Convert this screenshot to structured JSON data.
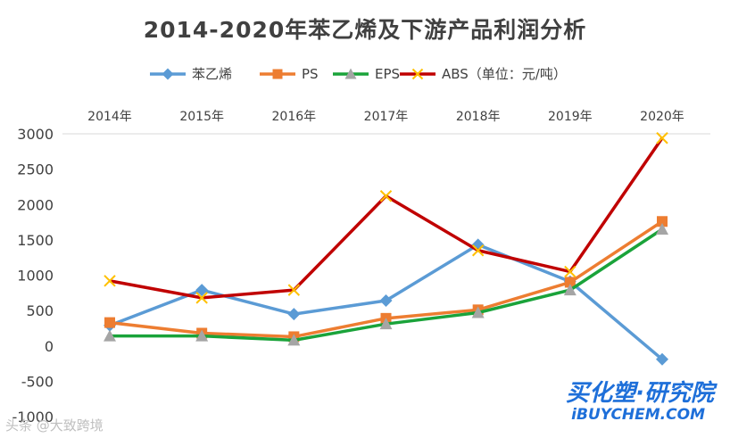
{
  "chart_data": {
    "type": "line",
    "title": "2014-2020年苯乙烯及下游产品利润分析",
    "categories": [
      "2014年",
      "2015年",
      "2016年",
      "2017年",
      "2018年",
      "2019年",
      "2020年"
    ],
    "ylim": [
      -1000,
      3000
    ],
    "yticks": [
      "3000",
      "2500",
      "2000",
      "1500",
      "1000",
      "500",
      "0",
      "-500",
      "-1000"
    ],
    "legend_position": "top",
    "grid": false,
    "series": [
      {
        "name": "苯乙烯",
        "values": [
          290,
          790,
          450,
          640,
          1430,
          910,
          -190
        ],
        "color": "#5b9bd5",
        "marker": "diamond",
        "markerColor": "#5b9bd5"
      },
      {
        "name": "PS",
        "values": [
          330,
          180,
          130,
          390,
          510,
          900,
          1760
        ],
        "color": "#ed7d31",
        "marker": "square",
        "markerColor": "#ed7d31"
      },
      {
        "name": "EPS",
        "values": [
          140,
          140,
          80,
          310,
          470,
          790,
          1650
        ],
        "color": "#1aa33a",
        "marker": "triangle",
        "markerColor": "#a5a5a5"
      },
      {
        "name": "ABS（单位：元/吨）",
        "values": [
          920,
          680,
          790,
          2120,
          1350,
          1050,
          2940
        ],
        "color": "#c00000",
        "marker": "x",
        "markerColor": "#ffc000"
      }
    ]
  },
  "watermark": {
    "cn": "买化塑·研究院",
    "en": "iBUYCHEM.COM",
    "source": "头条 @大致跨境"
  }
}
